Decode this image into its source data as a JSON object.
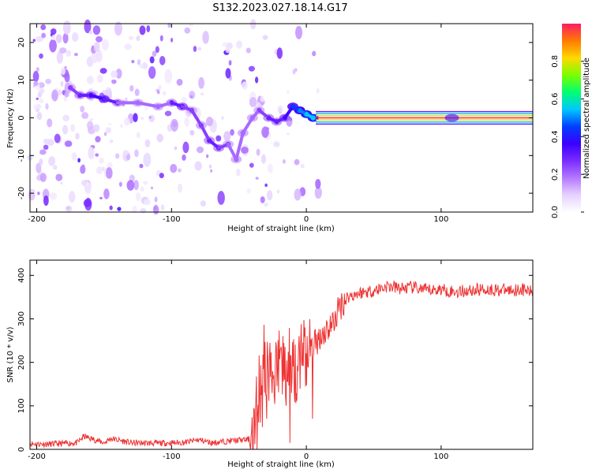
{
  "figure_title": "S132.2023.027.18.14.G17",
  "colors": {
    "snr_line": "#ee3333",
    "colormap": [
      "#ffffff",
      "#e6d2ff",
      "#b478ff",
      "#7a2cff",
      "#3a00ff",
      "#0040ff",
      "#00c8ff",
      "#00ff6e",
      "#7cff00",
      "#ffd800",
      "#ff7a00",
      "#ff1a66"
    ]
  },
  "chart_data": [
    {
      "type": "heatmap",
      "title": "",
      "xlabel": "Height of straight line (km)",
      "ylabel": "Frequency (Hz)",
      "xlim": [
        -205,
        168
      ],
      "ylim": [
        -25,
        25
      ],
      "x_ticks": [
        -200,
        -100,
        0,
        100
      ],
      "y_ticks": [
        -20,
        -10,
        0,
        10,
        20
      ],
      "colorbar": {
        "label": "Normalized spectral amplitude",
        "range": [
          0,
          1
        ],
        "ticks": [
          0.0,
          0.2,
          0.4,
          0.6,
          0.8
        ]
      },
      "ridge": [
        {
          "x": -175,
          "y": 8,
          "v": 0.25
        },
        {
          "x": -168,
          "y": 6,
          "v": 0.3
        },
        {
          "x": -160,
          "y": 6,
          "v": 0.35
        },
        {
          "x": -150,
          "y": 5,
          "v": 0.4
        },
        {
          "x": -140,
          "y": 4,
          "v": 0.3
        },
        {
          "x": -125,
          "y": 4,
          "v": 0.2
        },
        {
          "x": -110,
          "y": 3,
          "v": 0.2
        },
        {
          "x": -100,
          "y": 4,
          "v": 0.3
        },
        {
          "x": -92,
          "y": 3,
          "v": 0.35
        },
        {
          "x": -85,
          "y": 2,
          "v": 0.25
        },
        {
          "x": -78,
          "y": -2,
          "v": 0.25
        },
        {
          "x": -72,
          "y": -6,
          "v": 0.3
        },
        {
          "x": -65,
          "y": -8,
          "v": 0.3
        },
        {
          "x": -58,
          "y": -7,
          "v": 0.25
        },
        {
          "x": -52,
          "y": -11,
          "v": 0.2
        },
        {
          "x": -47,
          "y": -4,
          "v": 0.2
        },
        {
          "x": -40,
          "y": 0,
          "v": 0.2
        },
        {
          "x": -35,
          "y": 2,
          "v": 0.25
        },
        {
          "x": -28,
          "y": 0,
          "v": 0.3
        },
        {
          "x": -22,
          "y": -1,
          "v": 0.3
        },
        {
          "x": -16,
          "y": 0,
          "v": 0.35
        },
        {
          "x": -10,
          "y": 3,
          "v": 0.45
        },
        {
          "x": -5,
          "y": 2,
          "v": 0.5
        },
        {
          "x": 0,
          "y": 1,
          "v": 0.55
        },
        {
          "x": 5,
          "y": 0,
          "v": 0.55
        }
      ],
      "flat_line": {
        "x_start": 7,
        "x_end": 168,
        "y": 0,
        "v": 1.0
      },
      "blob_near_x": {
        "x": 108,
        "y": 0
      }
    },
    {
      "type": "line",
      "title": "",
      "xlabel": "Height of straight line (km)",
      "ylabel": "SNR (10 * v/v)",
      "xlim": [
        -205,
        168
      ],
      "ylim": [
        0,
        435
      ],
      "x_ticks": [
        -200,
        -100,
        0,
        100
      ],
      "y_ticks": [
        0,
        100,
        200,
        300,
        400
      ],
      "series": [
        {
          "x": [
            -205,
            -190,
            -170,
            -165,
            -150,
            -145,
            -130,
            -110,
            -90,
            -80,
            -70,
            -55,
            -45,
            -40,
            -38,
            -35,
            -30,
            -25,
            -20,
            -15,
            -10,
            -5,
            0,
            10,
            20,
            25,
            30,
            40,
            50,
            60,
            70,
            80,
            90,
            100,
            110,
            120,
            130,
            140,
            150,
            160,
            168
          ],
          "y": [
            13,
            12,
            15,
            30,
            15,
            25,
            15,
            14,
            16,
            22,
            15,
            20,
            22,
            24,
            80,
            140,
            160,
            180,
            190,
            185,
            190,
            200,
            210,
            260,
            290,
            330,
            350,
            360,
            365,
            375,
            370,
            372,
            365,
            368,
            362,
            365,
            368,
            367,
            366,
            368,
            360
          ]
        }
      ]
    }
  ]
}
